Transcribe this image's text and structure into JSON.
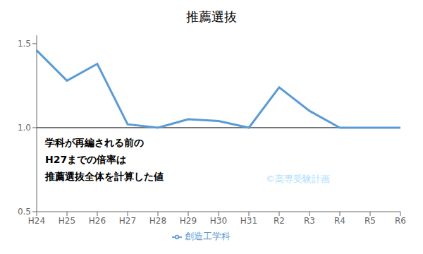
{
  "chart_data": {
    "type": "line",
    "title": "推薦選抜",
    "categories": [
      "H24",
      "H25",
      "H26",
      "H27",
      "H28",
      "H29",
      "H30",
      "H31",
      "R2",
      "R3",
      "R4",
      "R5",
      "R6"
    ],
    "series": [
      {
        "name": "創造工学科",
        "color": "#5b9bd5",
        "values": [
          1.46,
          1.28,
          1.38,
          1.02,
          1.0,
          1.05,
          1.04,
          1.0,
          1.24,
          1.1,
          1.0,
          1.0,
          1.0
        ]
      }
    ],
    "ylim": [
      0.5,
      1.55
    ],
    "yticks": [
      0.5,
      {
        "value": 1,
        "label": "1.0"
      },
      1.5
    ],
    "hline": {
      "y": 1,
      "color": "#000000"
    },
    "annotations": [
      {
        "text": "学科が再編される前の",
        "color": "#000000"
      },
      {
        "text": "H27までの倍率は",
        "color": "#000000"
      },
      {
        "text": "推薦選抜全体を計算した値",
        "color": "#000000"
      },
      {
        "text": "©高専受験計画",
        "color": "#aaddff"
      }
    ],
    "legend": "bottom",
    "grid": false
  }
}
